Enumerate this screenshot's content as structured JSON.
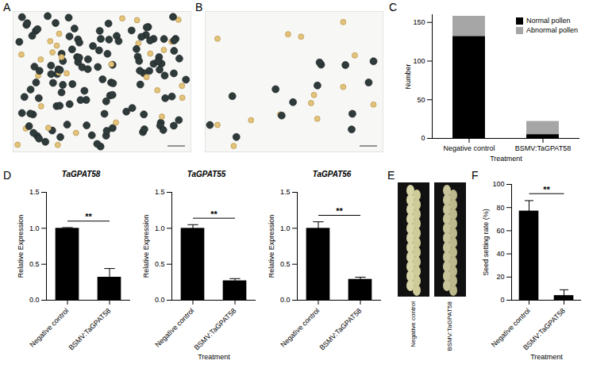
{
  "chart_data": [
    {
      "panel": "C",
      "type": "bar",
      "stacked": true,
      "categories": [
        "Negative control",
        "BSMV:TaGPAT58"
      ],
      "series": [
        {
          "name": "Normal pollen",
          "color": "#000000",
          "values": [
            132,
            5
          ]
        },
        {
          "name": "Abnormal pollen",
          "color": "#a6a6a6",
          "values": [
            26,
            17
          ]
        }
      ],
      "ylim": [
        0,
        160
      ],
      "yticks": [
        0,
        50,
        100,
        150
      ],
      "y_label": "Number",
      "x_label": "Treatment",
      "legend": "top-right"
    },
    {
      "panel": "D",
      "type": "bar",
      "title": "TaGPAT58",
      "categories": [
        "Negative control",
        "BSMV:TaGPAT58"
      ],
      "values": [
        1.0,
        0.32
      ],
      "errors": [
        0.01,
        0.12
      ],
      "color": "#000000",
      "ylim": [
        0,
        1.5
      ],
      "yticks": [
        {
          "value": 0,
          "label": "0.0"
        },
        {
          "value": 0.5,
          "label": "0.5"
        },
        {
          "value": 1,
          "label": "1.0"
        },
        {
          "value": 1.5,
          "label": "1.5"
        }
      ],
      "y_label": "Relative Expression",
      "annotations": [
        {
          "text": "**"
        }
      ]
    },
    {
      "type": "bar",
      "title": "TaGPAT55",
      "categories": [
        "Negative control",
        "BSMV:TaGPAT58"
      ],
      "values": [
        1.0,
        0.27
      ],
      "errors": [
        0.05,
        0.03
      ],
      "color": "#000000",
      "ylim": [
        0,
        1.5
      ],
      "yticks": [
        {
          "value": 0,
          "label": "0.0"
        },
        {
          "value": 0.5,
          "label": "0.5"
        },
        {
          "value": 1,
          "label": "1.0"
        },
        {
          "value": 1.5,
          "label": "1.5"
        }
      ],
      "y_label": "Relative Expression",
      "x_label": "Treatment",
      "annotations": [
        {
          "text": "**"
        }
      ]
    },
    {
      "type": "bar",
      "title": "TaGPAT56",
      "categories": [
        "Negative control",
        "BSMV:TaGPAT58"
      ],
      "values": [
        1.0,
        0.29
      ],
      "errors": [
        0.09,
        0.03
      ],
      "color": "#000000",
      "ylim": [
        0,
        1.5
      ],
      "yticks": [
        {
          "value": 0,
          "label": "0.0"
        },
        {
          "value": 0.5,
          "label": "0.5"
        },
        {
          "value": 1,
          "label": "1.0"
        },
        {
          "value": 1.5,
          "label": "1.5"
        }
      ],
      "y_label": "Relative Expression",
      "annotations": [
        {
          "text": "**"
        }
      ]
    },
    {
      "panel": "F",
      "type": "bar",
      "categories": [
        "Negative control",
        "BSMV:TaGPAT58"
      ],
      "values": [
        77,
        4
      ],
      "errors": [
        9,
        5
      ],
      "color": "#000000",
      "ylim": [
        0,
        100
      ],
      "yticks": [
        0,
        20,
        40,
        60,
        80,
        100
      ],
      "y_label": "Seed setting rate (%)",
      "x_label": "Treatment",
      "annotations": [
        {
          "text": "**"
        }
      ]
    }
  ],
  "images": [
    {
      "panel": "A"
    },
    {
      "panel": "B"
    },
    {
      "panel": "E",
      "labels": [
        "Negative control",
        "BSMV:TaGPAT58"
      ]
    }
  ]
}
